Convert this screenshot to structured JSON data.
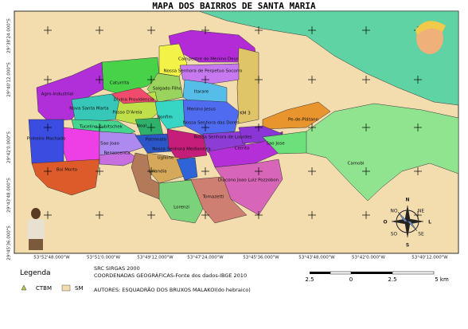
{
  "title": "MAPA DOS BAIRROS DE SANTA MARIA",
  "latitude_labels": [
    "29°38'24.000\"S",
    "29°40'12.000\"S",
    "29°42'0.000\"S",
    "29°43'48.000\"S",
    "29°45'36.000\"S"
  ],
  "longitude_labels": [
    "53°52'48.000\"W",
    "53°51'0.000\"W",
    "53°49'12.000\"W",
    "53°47'24.000\"W",
    "53°45'36.000\"W",
    "53°43'48.000\"W",
    "53°42'0.000\"W",
    "53°40'12.000\"W"
  ],
  "neighborhoods": [
    "Campestre do Menino Deus",
    "Nossa Senhora de Perpetuo Socorro",
    "Caturrita",
    "Salgado Filho",
    "Itarare",
    "Agro-Industrial",
    "Divina Providencia",
    "Nova Santa Marta",
    "Menino Jesus",
    "KM 3",
    "Passo D'Areia",
    "Bonfim",
    "Pe-de-Plátano",
    "Nossa Senhora das Dores",
    "Tucelino Kubitschek",
    "Noal",
    "Pinheiro Machado",
    "Sao Joao",
    "Renascenca",
    "Patronato",
    "Nossa Senhora de Lourdes",
    "Cerrito",
    "Sao Jose",
    "Nossa Senhora Medianeira",
    "Uglione",
    "Urlandia",
    "Boi Morto",
    "Camobi",
    "Diacono Joao Luiz Pozzobon",
    "Tomazetti",
    "Lorenzi"
  ],
  "legend": {
    "title": "Legenda",
    "items": [
      "CTBM",
      "SM"
    ]
  },
  "info": {
    "crs": "SRC SIRGAS 2000",
    "coordinates": "COORDENADAS GEOGRÁFICAS-Fonte dos dados-IBGE 2010",
    "authors": "AUTORES: ESQUADRÃO DOS BRUXOS MALAKOI(do hebraico)"
  },
  "scale_bar": {
    "labels": [
      "2.5",
      "0",
      "2.5",
      "5 km"
    ]
  },
  "compass": {
    "labels": [
      "N",
      "NO",
      "NE",
      "O",
      "L",
      "SO",
      "SE",
      "S"
    ]
  }
}
